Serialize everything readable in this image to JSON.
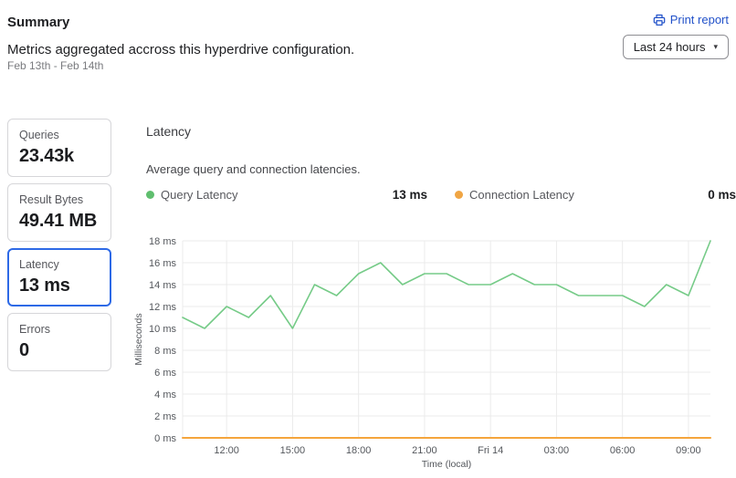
{
  "header": {
    "title": "Summary",
    "subtitle": "Metrics aggregated accross this hyperdrive configuration.",
    "date_range": "Feb 13th - Feb 14th",
    "print_report": "Print report",
    "time_range": "Last 24 hours",
    "chevron_char": "▾"
  },
  "metric_cards": [
    {
      "label": "Queries",
      "value": "23.43k",
      "selected": false
    },
    {
      "label": "Result Bytes",
      "value": "49.41 MB",
      "selected": false
    },
    {
      "label": "Latency",
      "value": "13 ms",
      "selected": true
    },
    {
      "label": "Errors",
      "value": "0",
      "selected": false
    }
  ],
  "chart_panel": {
    "title": "Latency",
    "description": "Average query and connection latencies.",
    "legend": [
      {
        "label": "Query Latency",
        "value": "13 ms",
        "color": "#5fbe6e"
      },
      {
        "label": "Connection Latency",
        "value": "0 ms",
        "color": "#f0a544"
      }
    ]
  },
  "chart_data": {
    "type": "line",
    "x": [
      "10:00",
      "11:00",
      "12:00",
      "13:00",
      "14:00",
      "15:00",
      "16:00",
      "17:00",
      "18:00",
      "19:00",
      "20:00",
      "21:00",
      "22:00",
      "23:00",
      "00:00",
      "01:00",
      "02:00",
      "03:00",
      "04:00",
      "05:00",
      "06:00",
      "07:00",
      "08:00",
      "09:00",
      "10:00"
    ],
    "x_tick_indices": [
      2,
      5,
      8,
      11,
      14,
      17,
      20,
      23
    ],
    "x_tick_labels": [
      "12:00",
      "15:00",
      "18:00",
      "21:00",
      "Fri 14",
      "03:00",
      "06:00",
      "09:00"
    ],
    "series": [
      {
        "name": "Query Latency",
        "color": "#76cb88",
        "width": 1.6,
        "values": [
          11,
          10,
          12,
          11,
          13,
          10,
          14,
          13,
          15,
          16,
          14,
          15,
          15,
          14,
          14,
          15,
          14,
          14,
          13,
          13,
          13,
          12,
          14,
          13,
          18
        ]
      },
      {
        "name": "Connection Latency",
        "color": "#f5a53c",
        "width": 2,
        "values": [
          0,
          0,
          0,
          0,
          0,
          0,
          0,
          0,
          0,
          0,
          0,
          0,
          0,
          0,
          0,
          0,
          0,
          0,
          0,
          0,
          0,
          0,
          0,
          0,
          0
        ]
      }
    ],
    "xlabel": "Time (local)",
    "ylabel": "Milliseconds",
    "ylim": [
      0,
      18
    ],
    "y_ticks": [
      0,
      2,
      4,
      6,
      8,
      10,
      12,
      14,
      16,
      18
    ],
    "y_tick_suffix": " ms",
    "grid": true,
    "legend_position": "top"
  },
  "colors": {
    "selected_card_border": "#2d69e6",
    "link_blue": "#2151c9",
    "card_border": "#d6d6d9",
    "gridline": "#ebebeb",
    "axis_text": "#54575c"
  }
}
